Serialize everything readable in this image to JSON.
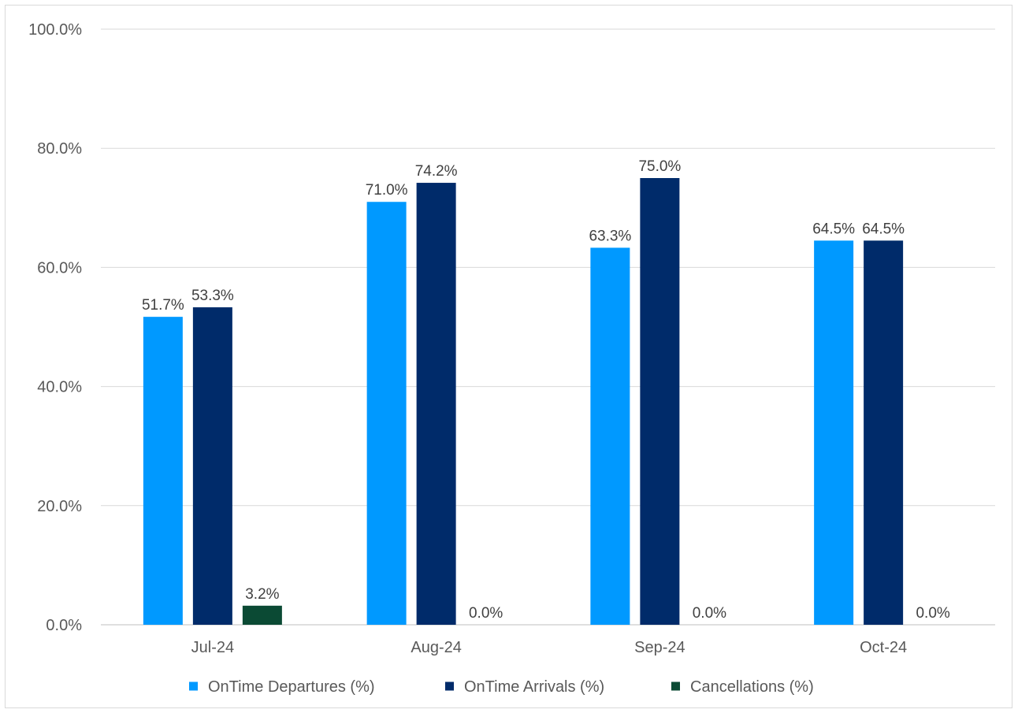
{
  "chart_data": {
    "type": "bar",
    "title": "",
    "xlabel": "",
    "ylabel": "",
    "categories": [
      "Jul-24",
      "Aug-24",
      "Sep-24",
      "Oct-24"
    ],
    "series": [
      {
        "name": "OnTime Departures (%)",
        "color": "#0099ff",
        "values": [
          51.7,
          71.0,
          63.3,
          64.5
        ],
        "labels": [
          "51.7%",
          "71.0%",
          "63.3%",
          "64.5%"
        ]
      },
      {
        "name": "OnTime Arrivals (%)",
        "color": "#002b6a",
        "values": [
          53.3,
          74.2,
          75.0,
          64.5
        ],
        "labels": [
          "53.3%",
          "74.2%",
          "75.0%",
          "64.5%"
        ]
      },
      {
        "name": "Cancellations (%)",
        "color": "#0b4a34",
        "values": [
          3.2,
          0.0,
          0.0,
          0.0
        ],
        "labels": [
          "3.2%",
          "0.0%",
          "0.0%",
          "0.0%"
        ]
      }
    ],
    "ylim": [
      0,
      100
    ],
    "yticks": [
      0,
      20,
      40,
      60,
      80,
      100
    ],
    "ytick_labels": [
      "0.0%",
      "20.0%",
      "40.0%",
      "60.0%",
      "80.0%",
      "100.0%"
    ],
    "grid": true,
    "legend_position": "bottom"
  }
}
